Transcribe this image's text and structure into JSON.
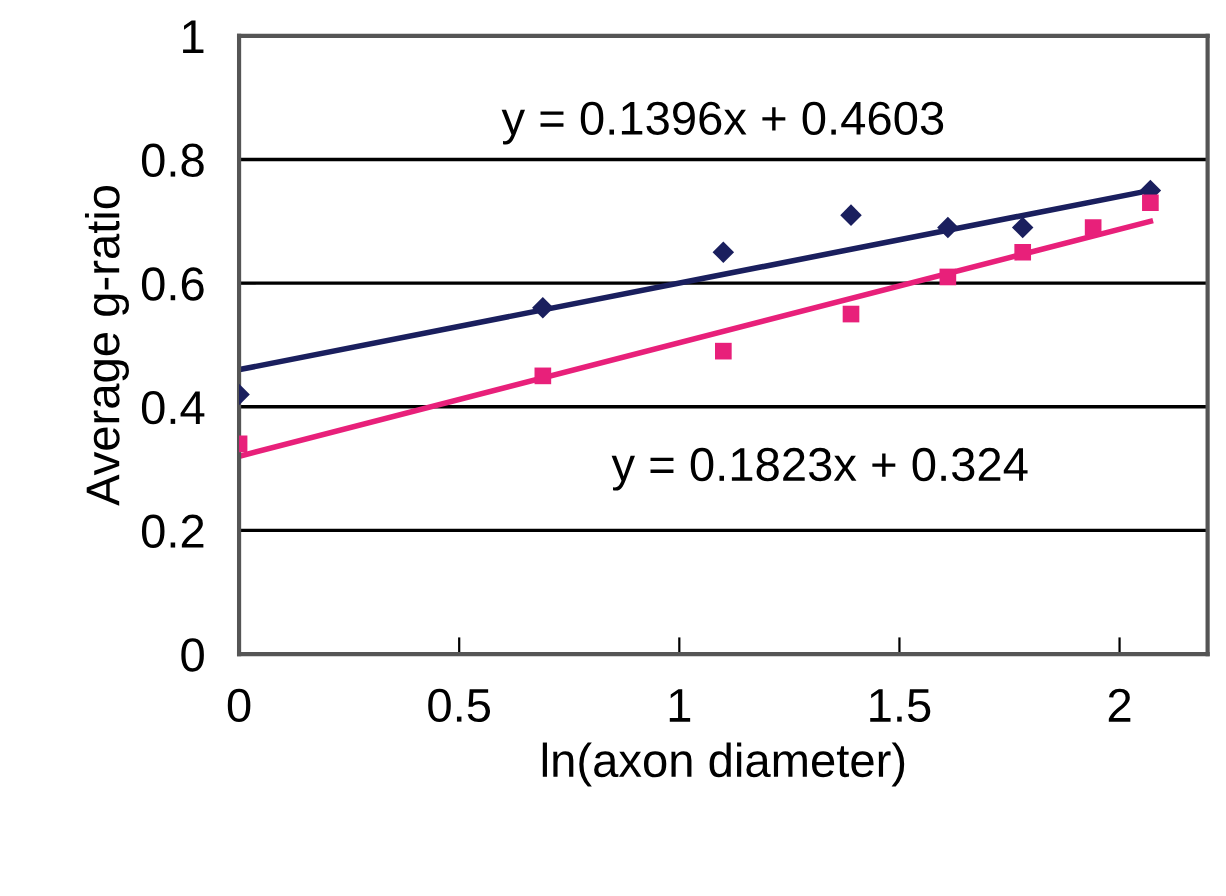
{
  "chart_data": {
    "type": "scatter",
    "xlabel": "ln(axon diameter)",
    "ylabel": "Average g-ratio",
    "xlim": [
      0,
      2.2
    ],
    "xticks": [
      0,
      0.5,
      1,
      1.5,
      2
    ],
    "ylim": [
      0,
      1
    ],
    "yticks": [
      0,
      0.2,
      0.4,
      0.6,
      0.8,
      1
    ],
    "grid": "y",
    "legend": false,
    "annotations": [
      "y = 0.1396x + 0.4603",
      "y = 0.1823x + 0.324"
    ],
    "series": [
      {
        "marker": "diamond",
        "color": "#1a1f5e",
        "x": [
          0,
          0.69,
          1.1,
          1.39,
          1.61,
          1.78,
          2.07
        ],
        "values": [
          0.42,
          0.56,
          0.65,
          0.71,
          0.69,
          0.69,
          0.75
        ]
      },
      {
        "marker": "square",
        "color": "#e8207a",
        "x": [
          0,
          0.69,
          1.1,
          1.39,
          1.61,
          1.78,
          1.94,
          2.07
        ],
        "values": [
          0.34,
          0.45,
          0.49,
          0.55,
          0.61,
          0.65,
          0.69,
          0.73
        ]
      },
      {
        "type": "line",
        "marker": "none",
        "color": "#1a1f5e",
        "x": [
          0,
          2.07
        ],
        "values": [
          0.46,
          0.75
        ]
      },
      {
        "type": "line",
        "marker": "none",
        "color": "#e8207a",
        "x": [
          0,
          2.07
        ],
        "values": [
          0.32,
          0.7
        ]
      }
    ]
  }
}
